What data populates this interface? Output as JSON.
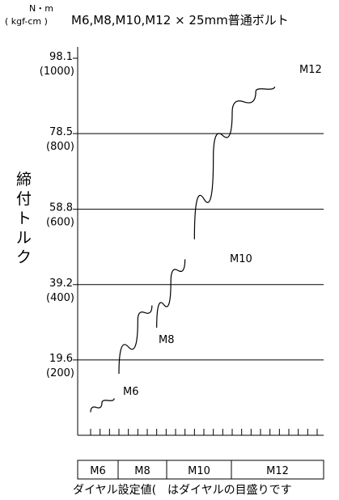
{
  "header": {
    "unit_top": "N・m",
    "unit_bottom": "( kgf-cm )",
    "title": "M6,M8,M10,M12 × 25mm普通ボルト"
  },
  "chart_data": {
    "type": "line",
    "title": "M6,M8,M10,M12 × 25mm普通ボルト",
    "ylabel": "締付トルク",
    "yunit": "N・m (kgf-cm)",
    "ylim": [
      0,
      98.1
    ],
    "yticks": [
      {
        "value": 98.1,
        "label_top": "98.1",
        "label_bottom": "(1000)"
      },
      {
        "value": 78.5,
        "label_top": "78.5",
        "label_bottom": "(800)"
      },
      {
        "value": 58.8,
        "label_top": "58.8",
        "label_bottom": "(600)"
      },
      {
        "value": 39.2,
        "label_top": "39.2",
        "label_bottom": "(400)"
      },
      {
        "value": 19.6,
        "label_top": "19.6",
        "label_bottom": "(200)"
      }
    ],
    "grid_values": [
      78.5,
      58.8,
      39.2,
      19.6
    ],
    "xlim": [
      0,
      24
    ],
    "x_tick_count": 25,
    "series": [
      {
        "name": "M6",
        "points": [
          [
            0,
            6
          ],
          [
            1.2,
            8.5
          ],
          [
            2.5,
            9.6
          ]
        ]
      },
      {
        "name": "M8",
        "points": [
          [
            3,
            16
          ],
          [
            5,
            30
          ],
          [
            6.5,
            33.8
          ]
        ]
      },
      {
        "name": "M10",
        "points": [
          [
            7,
            28
          ],
          [
            8.5,
            40
          ],
          [
            10,
            45.8
          ]
        ]
      },
      {
        "name": "M12",
        "points": [
          [
            11,
            51
          ],
          [
            13,
            72
          ],
          [
            15,
            84
          ],
          [
            17.5,
            89.5
          ],
          [
            19.5,
            90.7
          ]
        ]
      }
    ],
    "dial_table": [
      "M6",
      "M8",
      "M10",
      "M12"
    ]
  },
  "caption": "ダイヤル設定値(　はダイヤルの目盛りです"
}
